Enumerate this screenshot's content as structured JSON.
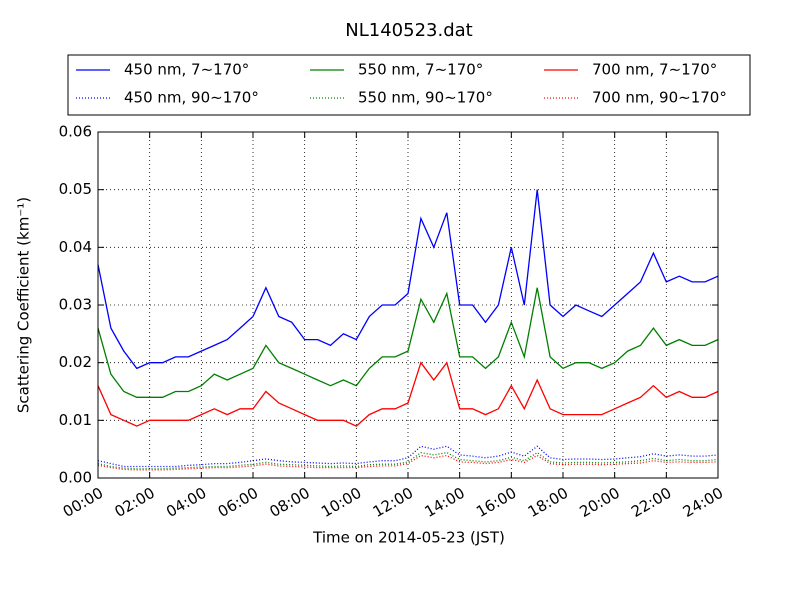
{
  "chart_data": {
    "type": "line",
    "title": "NL140523.dat",
    "x_label": "Time on 2014-05-23 (JST)",
    "y_label": "Scattering Coefficient (km⁻¹)",
    "xlim": [
      0,
      24
    ],
    "xticks": [
      {
        "value": 0,
        "label": "00:00"
      },
      {
        "value": 2,
        "label": "02:00"
      },
      {
        "value": 4,
        "label": "04:00"
      },
      {
        "value": 6,
        "label": "06:00"
      },
      {
        "value": 8,
        "label": "08:00"
      },
      {
        "value": 10,
        "label": "10:00"
      },
      {
        "value": 12,
        "label": "12:00"
      },
      {
        "value": 14,
        "label": "14:00"
      },
      {
        "value": 16,
        "label": "16:00"
      },
      {
        "value": 18,
        "label": "18:00"
      },
      {
        "value": 20,
        "label": "20:00"
      },
      {
        "value": 22,
        "label": "22:00"
      },
      {
        "value": 24,
        "label": "24:00"
      }
    ],
    "ylim": [
      0,
      0.06
    ],
    "yticks": [
      {
        "value": 0,
        "label": "0.00"
      },
      0.01,
      0.02,
      0.03,
      0.04,
      0.05,
      0.06
    ],
    "grid": true,
    "legend": "top",
    "x": [
      0,
      0.5,
      1,
      1.5,
      2,
      2.5,
      3,
      3.5,
      4,
      4.5,
      5,
      5.5,
      6,
      6.5,
      7,
      7.5,
      8,
      8.5,
      9,
      9.5,
      10,
      10.5,
      11,
      11.5,
      12,
      12.5,
      13,
      13.5,
      14,
      14.5,
      15,
      15.5,
      16,
      16.5,
      17,
      17.5,
      18,
      18.5,
      19,
      19.5,
      20,
      20.5,
      21,
      21.5,
      22,
      22.5,
      23,
      23.5,
      24
    ],
    "series": [
      {
        "name": "450 nm, 7∼170°",
        "color": "#0000ff",
        "linestyle": "solid",
        "values": [
          0.037,
          0.026,
          0.022,
          0.019,
          0.02,
          0.02,
          0.021,
          0.021,
          0.022,
          0.023,
          0.024,
          0.026,
          0.028,
          0.033,
          0.028,
          0.027,
          0.024,
          0.024,
          0.023,
          0.025,
          0.024,
          0.028,
          0.03,
          0.03,
          0.032,
          0.045,
          0.04,
          0.046,
          0.03,
          0.03,
          0.027,
          0.03,
          0.04,
          0.03,
          0.05,
          0.03,
          0.028,
          0.03,
          0.029,
          0.028,
          0.03,
          0.032,
          0.034,
          0.039,
          0.034,
          0.035,
          0.034,
          0.034,
          0.035
        ]
      },
      {
        "name": "450 nm, 90∼170°",
        "color": "#0000ff",
        "linestyle": "dotted",
        "values": [
          0.003,
          0.0025,
          0.002,
          0.002,
          0.002,
          0.002,
          0.002,
          0.0022,
          0.0023,
          0.0025,
          0.0025,
          0.0027,
          0.003,
          0.0033,
          0.003,
          0.0028,
          0.0027,
          0.0026,
          0.0025,
          0.0026,
          0.0025,
          0.0028,
          0.003,
          0.003,
          0.0035,
          0.0055,
          0.005,
          0.0055,
          0.004,
          0.0038,
          0.0035,
          0.0038,
          0.0045,
          0.0038,
          0.0055,
          0.0035,
          0.0032,
          0.0033,
          0.0033,
          0.0032,
          0.0033,
          0.0035,
          0.0037,
          0.0042,
          0.0038,
          0.004,
          0.0038,
          0.0038,
          0.004
        ]
      },
      {
        "name": "550 nm, 7∼170°",
        "color": "#008000",
        "linestyle": "solid",
        "values": [
          0.026,
          0.018,
          0.015,
          0.014,
          0.014,
          0.014,
          0.015,
          0.015,
          0.016,
          0.018,
          0.017,
          0.018,
          0.019,
          0.023,
          0.02,
          0.019,
          0.018,
          0.017,
          0.016,
          0.017,
          0.016,
          0.019,
          0.021,
          0.021,
          0.022,
          0.031,
          0.027,
          0.032,
          0.021,
          0.021,
          0.019,
          0.021,
          0.027,
          0.021,
          0.033,
          0.021,
          0.019,
          0.02,
          0.02,
          0.019,
          0.02,
          0.022,
          0.023,
          0.026,
          0.023,
          0.024,
          0.023,
          0.023,
          0.024
        ]
      },
      {
        "name": "550 nm, 90∼170°",
        "color": "#008000",
        "linestyle": "dotted",
        "values": [
          0.0025,
          0.002,
          0.0017,
          0.0016,
          0.0016,
          0.0016,
          0.0017,
          0.0018,
          0.0019,
          0.002,
          0.002,
          0.0022,
          0.0024,
          0.0027,
          0.0024,
          0.0023,
          0.0022,
          0.0021,
          0.002,
          0.0021,
          0.002,
          0.0023,
          0.0024,
          0.0024,
          0.0028,
          0.0044,
          0.004,
          0.0044,
          0.0032,
          0.003,
          0.0028,
          0.003,
          0.0036,
          0.003,
          0.0044,
          0.0028,
          0.0026,
          0.0027,
          0.0027,
          0.0026,
          0.0027,
          0.0028,
          0.003,
          0.0034,
          0.003,
          0.0032,
          0.003,
          0.003,
          0.0032
        ]
      },
      {
        "name": "700 nm, 7∼170°",
        "color": "#ff0000",
        "linestyle": "solid",
        "values": [
          0.016,
          0.011,
          0.01,
          0.009,
          0.01,
          0.01,
          0.01,
          0.01,
          0.011,
          0.012,
          0.011,
          0.012,
          0.012,
          0.015,
          0.013,
          0.012,
          0.011,
          0.01,
          0.01,
          0.01,
          0.009,
          0.011,
          0.012,
          0.012,
          0.013,
          0.02,
          0.017,
          0.02,
          0.012,
          0.012,
          0.011,
          0.012,
          0.016,
          0.012,
          0.017,
          0.012,
          0.011,
          0.011,
          0.011,
          0.011,
          0.012,
          0.013,
          0.014,
          0.016,
          0.014,
          0.015,
          0.014,
          0.014,
          0.015
        ]
      },
      {
        "name": "700 nm, 90∼170°",
        "color": "#ff0000",
        "linestyle": "dotted",
        "values": [
          0.0022,
          0.0018,
          0.0015,
          0.0014,
          0.0014,
          0.0014,
          0.0015,
          0.0016,
          0.0017,
          0.0018,
          0.0018,
          0.0019,
          0.0021,
          0.0024,
          0.0021,
          0.002,
          0.0019,
          0.0018,
          0.0018,
          0.0018,
          0.0018,
          0.002,
          0.0021,
          0.0021,
          0.0025,
          0.0039,
          0.0035,
          0.0039,
          0.0028,
          0.0027,
          0.0025,
          0.0027,
          0.0032,
          0.0027,
          0.0039,
          0.0025,
          0.0023,
          0.0024,
          0.0024,
          0.0023,
          0.0024,
          0.0025,
          0.0026,
          0.003,
          0.0027,
          0.0028,
          0.0027,
          0.0027,
          0.0028
        ]
      }
    ]
  }
}
